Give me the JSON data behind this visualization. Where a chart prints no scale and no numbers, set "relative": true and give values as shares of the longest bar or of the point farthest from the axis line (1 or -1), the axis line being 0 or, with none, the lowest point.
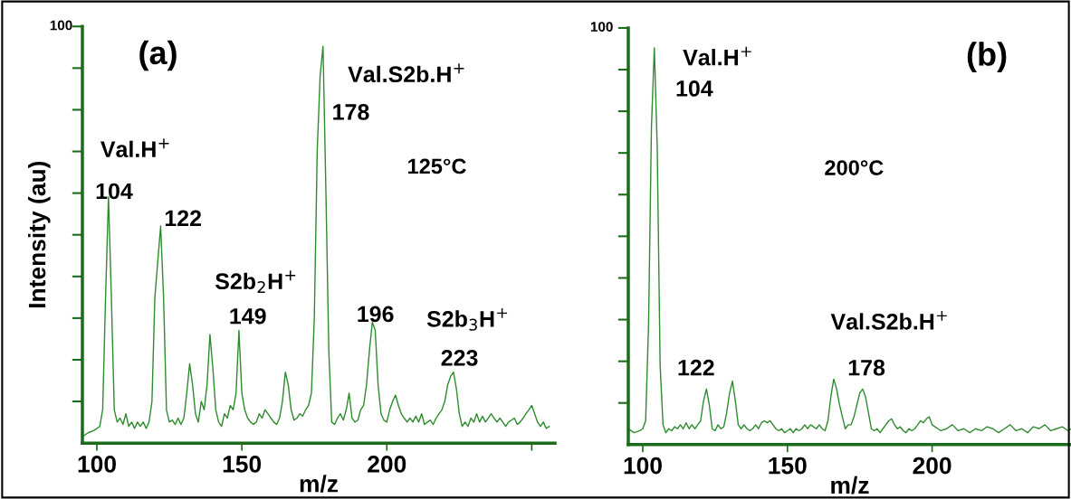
{
  "chart_data": [
    {
      "type": "line",
      "relative": true,
      "title": "(a)",
      "subtitle": "125°C",
      "xlabel": "m/z",
      "ylabel": "Intensity (au)",
      "xlim": [
        95,
        258
      ],
      "xticks": [
        100,
        150,
        200,
        {
          "value": 250,
          "label": null
        }
      ],
      "series": [
        {
          "color": "#2e8b2e",
          "x": [
            95,
            97,
            99,
            101,
            102,
            103,
            104,
            105,
            106,
            107,
            108,
            109,
            110,
            111,
            112,
            113,
            114,
            115,
            116,
            117,
            118,
            119,
            120,
            122,
            123,
            124,
            125,
            126,
            127,
            128,
            129,
            130,
            131,
            132,
            133,
            134,
            135,
            136,
            137,
            138,
            139,
            140,
            141,
            142,
            143,
            144,
            145,
            146,
            147,
            148,
            149,
            150,
            151,
            152,
            153,
            154,
            155,
            156,
            157,
            158,
            159,
            160,
            161,
            162,
            163,
            164,
            165,
            166,
            167,
            168,
            169,
            170,
            171,
            172,
            173,
            174,
            175,
            176,
            177,
            178,
            179,
            180,
            181,
            182,
            183,
            184,
            185,
            186,
            187,
            188,
            189,
            190,
            191,
            192,
            193,
            194,
            195,
            196,
            197,
            198,
            199,
            200,
            201,
            202,
            203,
            204,
            205,
            206,
            207,
            208,
            209,
            210,
            211,
            212,
            213,
            214,
            215,
            216,
            217,
            218,
            219,
            220,
            221,
            222,
            223,
            224,
            225,
            226,
            227,
            228,
            229,
            230,
            231,
            232,
            233,
            234,
            235,
            236,
            237,
            238,
            239,
            240,
            241,
            242,
            243,
            244,
            245,
            246,
            247,
            248,
            249,
            250,
            251,
            252,
            253,
            254,
            255,
            256
          ],
          "values": [
            0.016,
            0.026,
            0.032,
            0.042,
            0.084,
            0.368,
            0.621,
            0.368,
            0.084,
            0.053,
            0.063,
            0.047,
            0.074,
            0.042,
            0.053,
            0.037,
            0.053,
            0.042,
            0.053,
            0.037,
            0.053,
            0.105,
            0.368,
            0.547,
            0.368,
            0.084,
            0.053,
            0.058,
            0.047,
            0.063,
            0.047,
            0.063,
            0.126,
            0.2,
            0.147,
            0.074,
            0.053,
            0.105,
            0.084,
            0.147,
            0.274,
            0.189,
            0.084,
            0.053,
            0.042,
            0.074,
            0.063,
            0.095,
            0.084,
            0.126,
            0.284,
            0.126,
            0.084,
            0.063,
            0.053,
            0.047,
            0.053,
            0.074,
            0.063,
            0.084,
            0.074,
            0.063,
            0.053,
            0.047,
            0.063,
            0.105,
            0.179,
            0.147,
            0.084,
            0.058,
            0.063,
            0.074,
            0.068,
            0.084,
            0.095,
            0.126,
            0.316,
            0.737,
            0.926,
            1,
            0.632,
            0.232,
            0.053,
            0.047,
            0.063,
            0.074,
            0.058,
            0.084,
            0.126,
            0.063,
            0.053,
            0.058,
            0.084,
            0.095,
            0.147,
            0.232,
            0.305,
            0.284,
            0.147,
            0.074,
            0.058,
            0.053,
            0.084,
            0.105,
            0.121,
            0.095,
            0.074,
            0.063,
            0.053,
            0.063,
            0.053,
            0.068,
            0.053,
            0.074,
            0.047,
            0.053,
            0.058,
            0.047,
            0.063,
            0.074,
            0.084,
            0.105,
            0.147,
            0.168,
            0.179,
            0.137,
            0.074,
            0.042,
            0.053,
            0.042,
            0.063,
            0.053,
            0.074,
            0.053,
            0.068,
            0.053,
            0.063,
            0.074,
            0.063,
            0.053,
            0.063,
            0.053,
            0.042,
            0.053,
            0.058,
            0.063,
            0.047,
            0.053,
            0.063,
            0.074,
            0.084,
            0.095,
            0.074,
            0.053,
            0.042,
            0.053,
            0.037,
            0.042
          ]
        }
      ],
      "annotations": [
        "100",
        "Val.H$^{+}$",
        "104",
        "122",
        "S2b$_{2}$H$^{+}$",
        "149",
        "Val.S2b.H$^{+}$",
        "178",
        "196",
        "S2b$_{3}$H$^{+}$",
        "223"
      ]
    },
    {
      "type": "line",
      "relative": true,
      "title": "(b)",
      "subtitle": "200°C",
      "xlabel": "m/z",
      "xlim": [
        95,
        248
      ],
      "xticks": [
        100,
        150,
        200
      ],
      "series": [
        {
          "color": "#2e8b2e",
          "x": [
            95,
            97,
            99,
            100,
            101,
            102,
            103,
            104,
            105,
            106,
            107,
            108,
            109,
            110,
            111,
            112,
            113,
            114,
            115,
            116,
            117,
            118,
            119,
            120,
            121,
            122,
            123,
            124,
            125,
            126,
            127,
            128,
            129,
            130,
            131,
            132,
            133,
            134,
            135,
            136,
            137,
            138,
            139,
            140,
            141,
            142,
            143,
            144,
            145,
            146,
            147,
            148,
            149,
            150,
            151,
            152,
            153,
            154,
            155,
            156,
            157,
            158,
            159,
            160,
            161,
            162,
            163,
            164,
            165,
            166,
            167,
            168,
            169,
            170,
            171,
            172,
            173,
            174,
            175,
            176,
            177,
            178,
            179,
            180,
            181,
            182,
            183,
            184,
            185,
            186,
            187,
            188,
            189,
            190,
            191,
            192,
            193,
            194,
            195,
            196,
            197,
            198,
            199,
            200,
            201,
            202,
            203,
            205,
            207,
            209,
            211,
            213,
            215,
            217,
            219,
            221,
            223,
            225,
            227,
            229,
            231,
            233,
            235,
            237,
            239,
            241,
            243,
            245,
            247,
            248
          ],
          "values": [
            0.04,
            0.03,
            0.035,
            0.04,
            0.06,
            0.3,
            0.8,
            1,
            0.75,
            0.2,
            0.05,
            0.03,
            0.04,
            0.035,
            0.045,
            0.04,
            0.05,
            0.04,
            0.055,
            0.04,
            0.05,
            0.04,
            0.05,
            0.06,
            0.11,
            0.14,
            0.1,
            0.04,
            0.035,
            0.05,
            0.04,
            0.045,
            0.08,
            0.13,
            0.16,
            0.11,
            0.05,
            0.04,
            0.05,
            0.04,
            0.035,
            0.04,
            0.05,
            0.04,
            0.055,
            0.06,
            0.055,
            0.06,
            0.05,
            0.04,
            0.035,
            0.04,
            0.03,
            0.035,
            0.04,
            0.03,
            0.04,
            0.035,
            0.04,
            0.05,
            0.04,
            0.05,
            0.045,
            0.04,
            0.05,
            0.04,
            0.035,
            0.06,
            0.12,
            0.165,
            0.14,
            0.1,
            0.07,
            0.04,
            0.05,
            0.05,
            0.07,
            0.1,
            0.13,
            0.14,
            0.12,
            0.08,
            0.04,
            0.035,
            0.04,
            0.03,
            0.04,
            0.05,
            0.06,
            0.065,
            0.05,
            0.04,
            0.045,
            0.035,
            0.03,
            0.04,
            0.035,
            0.04,
            0.05,
            0.06,
            0.055,
            0.065,
            0.07,
            0.05,
            0.045,
            0.04,
            0.035,
            0.04,
            0.05,
            0.035,
            0.04,
            0.03,
            0.04,
            0.035,
            0.045,
            0.04,
            0.03,
            0.04,
            0.05,
            0.035,
            0.04,
            0.03,
            0.045,
            0.04,
            0.05,
            0.035,
            0.04,
            0.045,
            0.035,
            0.04
          ]
        }
      ],
      "annotations": [
        "100",
        "Val.H$^{+}$",
        "104",
        "122",
        "Val.S2b.H$^{+}$",
        "178"
      ]
    }
  ]
}
